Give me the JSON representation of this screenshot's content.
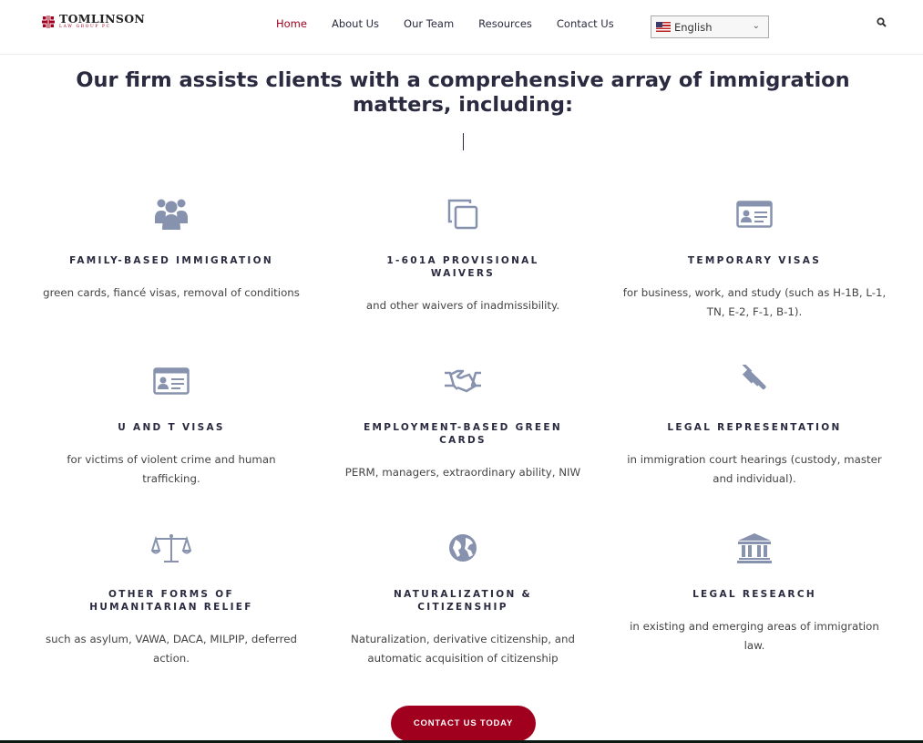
{
  "header": {
    "logo": {
      "name": "TOMLINSON",
      "subtitle": "LAW GROUP PC"
    },
    "nav": [
      {
        "label": "Home",
        "active": true
      },
      {
        "label": "About Us"
      },
      {
        "label": "Our Team"
      },
      {
        "label": "Resources"
      },
      {
        "label": "Contact Us"
      }
    ],
    "language": "English",
    "search_icon": "search-icon"
  },
  "main": {
    "title": "Our firm assists clients with a comprehensive array of immigration matters, including:",
    "services": [
      {
        "icon": "users-icon",
        "title": "FAMILY-BASED IMMIGRATION",
        "text": "green cards, fiancé visas, removal of conditions"
      },
      {
        "icon": "copy-icon",
        "title": "1-601A PROVISIONAL WAIVERS",
        "text": "and other waivers of inadmissibility."
      },
      {
        "icon": "id-card-icon",
        "title": "TEMPORARY VISAS",
        "text": "for business, work, and study (such as H-1B, L-1, TN, E-2, F-1, B-1)."
      },
      {
        "icon": "id-card-icon",
        "title": "U AND T VISAS",
        "text": "for victims of violent crime and human trafficking."
      },
      {
        "icon": "handshake-icon",
        "title": "EMPLOYMENT-BASED GREEN CARDS",
        "text": "PERM, managers, extraordinary ability, NIW"
      },
      {
        "icon": "gavel-icon",
        "title": "LEGAL REPRESENTATION",
        "text": "in immigration court hearings (custody, master and individual)."
      },
      {
        "icon": "scales-icon",
        "title": "OTHER FORMS OF HUMANITARIAN RELIEF",
        "text": "such as asylum, VAWA, DACA, MILPIP, deferred action."
      },
      {
        "icon": "globe-icon",
        "title": "NATURALIZATION & CITIZENSHIP",
        "text": "Naturalization, derivative citizenship, and automatic acquisition of citizenship"
      },
      {
        "icon": "bank-icon",
        "title": "LEGAL RESEARCH",
        "text": "in existing and emerging areas of immigration law."
      }
    ],
    "cta": "CONTACT US TODAY"
  },
  "colors": {
    "brand": "#a0001e",
    "heading": "#2a2a40",
    "icon": "#8792ae"
  }
}
